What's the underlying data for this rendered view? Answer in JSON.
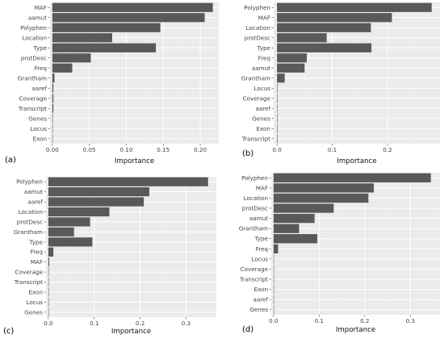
{
  "chart_data": [
    {
      "panel": "(a)",
      "type": "bar",
      "orientation": "horizontal",
      "xlabel": "Importance",
      "ylabel": "",
      "xlim": [
        -0.003,
        0.225
      ],
      "xticks": [
        0.0,
        0.05,
        0.1,
        0.15,
        0.2
      ],
      "xtick_labels": [
        "0.00",
        "0.05",
        "0.10",
        "0.15",
        "0.20"
      ],
      "grid": true,
      "categories": [
        "MAF",
        "aamut",
        "Polyphen",
        "Location",
        "Type",
        "protDesc",
        "Freq",
        "Grantham",
        "aaref",
        "Coverage",
        "Transcript",
        "Genes",
        "Locus",
        "Exon"
      ],
      "values": [
        0.217,
        0.206,
        0.146,
        0.081,
        0.14,
        0.052,
        0.027,
        0.003,
        0.0015,
        0.0015,
        0.0015,
        0.0008,
        0.0005,
        0.0003
      ]
    },
    {
      "panel": "(b)",
      "type": "bar",
      "orientation": "horizontal",
      "xlabel": "Importance",
      "ylabel": "",
      "xlim": [
        -0.006,
        0.295
      ],
      "xticks": [
        0.0,
        0.1,
        0.2
      ],
      "xtick_labels": [
        "0.0",
        "0.1",
        "0.2"
      ],
      "grid": true,
      "categories": [
        "Polyphen",
        "MAF",
        "Location",
        "protDesc",
        "Type",
        "Freq",
        "aamut",
        "Grantham",
        "Locus",
        "Coverage",
        "aaref",
        "Genes",
        "Exon",
        "Transcript"
      ],
      "values": [
        0.28,
        0.208,
        0.17,
        0.09,
        0.171,
        0.054,
        0.05,
        0.014,
        0.001,
        0.0004,
        0.0004,
        0.0004,
        0.001,
        0.001
      ]
    },
    {
      "panel": "(c)",
      "type": "bar",
      "orientation": "horizontal",
      "xlabel": "Importance",
      "ylabel": "",
      "xlim": [
        -0.005,
        0.366
      ],
      "xticks": [
        0.0,
        0.1,
        0.2,
        0.3
      ],
      "xtick_labels": [
        "0.0",
        "0.1",
        "0.2",
        "0.3"
      ],
      "grid": true,
      "categories": [
        "Polyphen",
        "aamut",
        "aaref",
        "Location",
        "protDesc",
        "Grantham",
        "Type",
        "Freq",
        "MAF",
        "Coverage",
        "Transcript",
        "Exon",
        "Locus",
        "Genes"
      ],
      "values": [
        0.348,
        0.22,
        0.208,
        0.133,
        0.091,
        0.056,
        0.096,
        0.011,
        0.002,
        0.001,
        0.001,
        0.001,
        0.0005,
        0.0005
      ]
    },
    {
      "panel": "(d)",
      "type": "bar",
      "orientation": "horizontal",
      "xlabel": "Importance",
      "ylabel": "",
      "xlim": [
        -0.005,
        0.365
      ],
      "xticks": [
        0.0,
        0.1,
        0.2,
        0.3
      ],
      "xtick_labels": [
        "0.0",
        "0.1",
        "0.2",
        "0.3"
      ],
      "grid": true,
      "categories": [
        "Polyphen",
        "MAF",
        "Location",
        "protDesc",
        "aamut",
        "Grantham",
        "Type",
        "Freq",
        "Locus",
        "Coverage",
        "Transcript",
        "Exon",
        "aaref",
        "Genes"
      ],
      "values": [
        0.345,
        0.22,
        0.208,
        0.132,
        0.09,
        0.056,
        0.096,
        0.01,
        0.001,
        0.001,
        0.001,
        0.001,
        0.0005,
        0.0004
      ]
    }
  ]
}
